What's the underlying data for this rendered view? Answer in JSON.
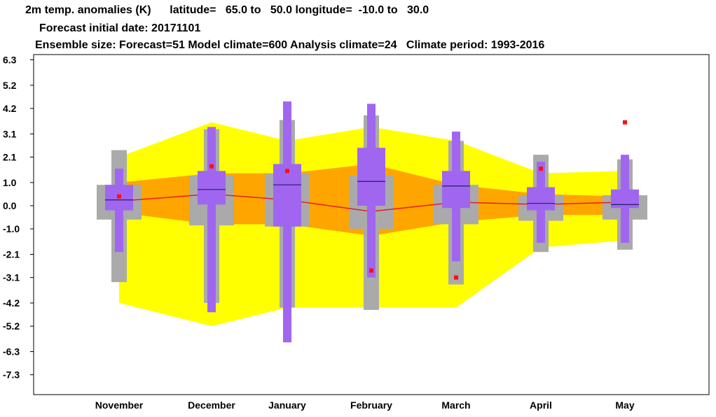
{
  "header": {
    "line1": "2m temp. anomalies (K)      latitude=   65.0 to   50.0 longitude=  -10.0 to   30.0",
    "line2": "Forecast initial date: 20171101",
    "line3": "Ensemble size: Forecast=51 Model climate=600 Analysis climate=24   Climate period: 1993-2016"
  },
  "chart_data": {
    "type": "box",
    "title": "2m temp. anomalies (K)",
    "ylim": [
      -7.8,
      6.5
    ],
    "y_ticks": [
      "6.3",
      "5.2",
      "4.2",
      "3.1",
      "2.1",
      "1.0",
      "0.0",
      "-1.0",
      "-2.1",
      "-3.1",
      "-4.2",
      "-5.2",
      "-6.3",
      "-7.3"
    ],
    "y_tick_values": [
      6.3,
      5.2,
      4.2,
      3.1,
      2.1,
      1.0,
      0.0,
      -1.0,
      -2.1,
      -3.1,
      -4.2,
      -5.2,
      -6.3,
      -7.3
    ],
    "categories": [
      "November",
      "December",
      "January",
      "February",
      "March",
      "April",
      "May"
    ],
    "colors": {
      "climate_outer": "#ffff00",
      "climate_inner": "#ffa500",
      "model_climate": "#aaaaaa",
      "forecast": "#a066f0",
      "median_line": "#e02020",
      "forecast_median": "#202060",
      "analysis": "#ff1010"
    },
    "climate_band": {
      "outer_upper": [
        2.1,
        3.6,
        2.8,
        3.4,
        2.8,
        1.4,
        1.5
      ],
      "outer_lower": [
        -4.2,
        -5.2,
        -4.4,
        -4.4,
        -4.4,
        -1.8,
        -1.5
      ],
      "inner_upper": [
        1.0,
        1.4,
        1.4,
        1.8,
        0.9,
        0.5,
        0.4
      ],
      "inner_lower": [
        -0.3,
        -0.8,
        -0.8,
        -1.3,
        -0.7,
        -0.4,
        -0.4
      ],
      "median": [
        0.2,
        0.5,
        0.25,
        -0.25,
        0.15,
        0.05,
        0.15
      ]
    },
    "model_climate": [
      {
        "min": -3.3,
        "q25": -0.6,
        "median": 0.2,
        "q75": 0.9,
        "max": 2.4
      },
      {
        "min": -4.2,
        "q25": -0.85,
        "median": 0.3,
        "q75": 1.3,
        "max": 3.3
      },
      {
        "min": -4.4,
        "q25": -0.9,
        "median": 0.25,
        "q75": 1.4,
        "max": 3.7
      },
      {
        "min": -4.5,
        "q25": -1.0,
        "median": 0.05,
        "q75": 1.3,
        "max": 3.9
      },
      {
        "min": -3.4,
        "q25": -0.8,
        "median": 0.1,
        "q75": 0.9,
        "max": 2.8
      },
      {
        "min": -2.0,
        "q25": -0.65,
        "median": 0.05,
        "q75": 0.45,
        "max": 2.2
      },
      {
        "min": -1.9,
        "q25": -0.6,
        "median": 0.0,
        "q75": 0.45,
        "max": 2.0
      }
    ],
    "forecast": [
      {
        "min": -2.0,
        "q25": -0.2,
        "median": 0.25,
        "q75": 0.9,
        "max": 1.6
      },
      {
        "min": -4.6,
        "q25": 0.05,
        "median": 0.7,
        "q75": 1.5,
        "max": 3.4
      },
      {
        "min": -5.9,
        "q25": -0.9,
        "median": 0.9,
        "q75": 1.8,
        "max": 4.5
      },
      {
        "min": -3.1,
        "q25": 0.0,
        "median": 1.05,
        "q75": 2.5,
        "max": 4.4
      },
      {
        "min": -2.4,
        "q25": -0.1,
        "median": 0.85,
        "q75": 1.5,
        "max": 3.2
      },
      {
        "min": -1.6,
        "q25": -0.2,
        "median": 0.1,
        "q75": 0.8,
        "max": 1.9
      },
      {
        "min": -1.6,
        "q25": -0.1,
        "median": 0.05,
        "q75": 0.7,
        "max": 2.2
      }
    ],
    "analysis": [
      0.4,
      1.7,
      1.5,
      -2.8,
      -3.1,
      1.6,
      3.6
    ]
  }
}
